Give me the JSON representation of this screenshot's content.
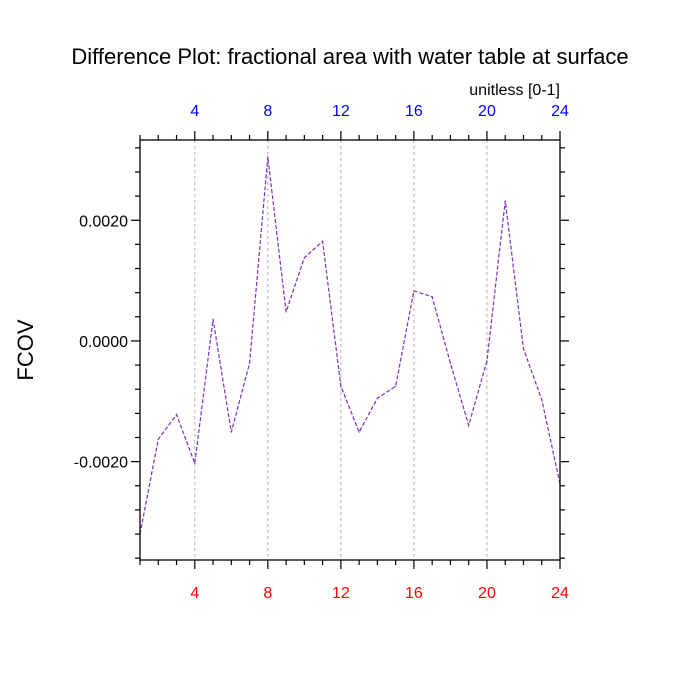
{
  "chart_data": {
    "type": "line",
    "title": "Difference Plot: fractional area with water table at surface",
    "units_label": "unitless [0-1]",
    "xlabel": "",
    "ylabel": "FCOV",
    "xlim": [
      1,
      24
    ],
    "ylim": [
      -0.00363,
      0.00333
    ],
    "x_ticks": [
      4,
      8,
      12,
      16,
      20,
      24
    ],
    "x_tick_labels": [
      "4",
      "8",
      "12",
      "16",
      "20",
      "24"
    ],
    "y_ticks": [
      0.002,
      0.0,
      -0.002
    ],
    "y_tick_labels": [
      "0.0020",
      "0.0000",
      "-0.0020"
    ],
    "grid": "vertical dashed at major x ticks",
    "top_axis_label_color": "#0000ff",
    "bottom_axis_label_color": "#ff0000",
    "series": [
      {
        "line_color": "#7b2fbe",
        "line_style": "dashed",
        "x": [
          1,
          2,
          3,
          4,
          5,
          6,
          7,
          8,
          9,
          10,
          11,
          12,
          13,
          14,
          15,
          16,
          17,
          18,
          19,
          20,
          21,
          22,
          23,
          24
        ],
        "values": [
          -0.0032,
          -0.00163,
          -0.00122,
          -0.00203,
          0.00036,
          -0.00151,
          -0.00037,
          0.00305,
          0.00048,
          0.00138,
          0.00165,
          -0.00075,
          -0.00151,
          -0.00095,
          -0.00075,
          0.00083,
          0.00073,
          -0.00037,
          -0.0014,
          -0.00033,
          0.00232,
          -0.00013,
          -0.00097,
          -0.00237
        ]
      }
    ]
  }
}
